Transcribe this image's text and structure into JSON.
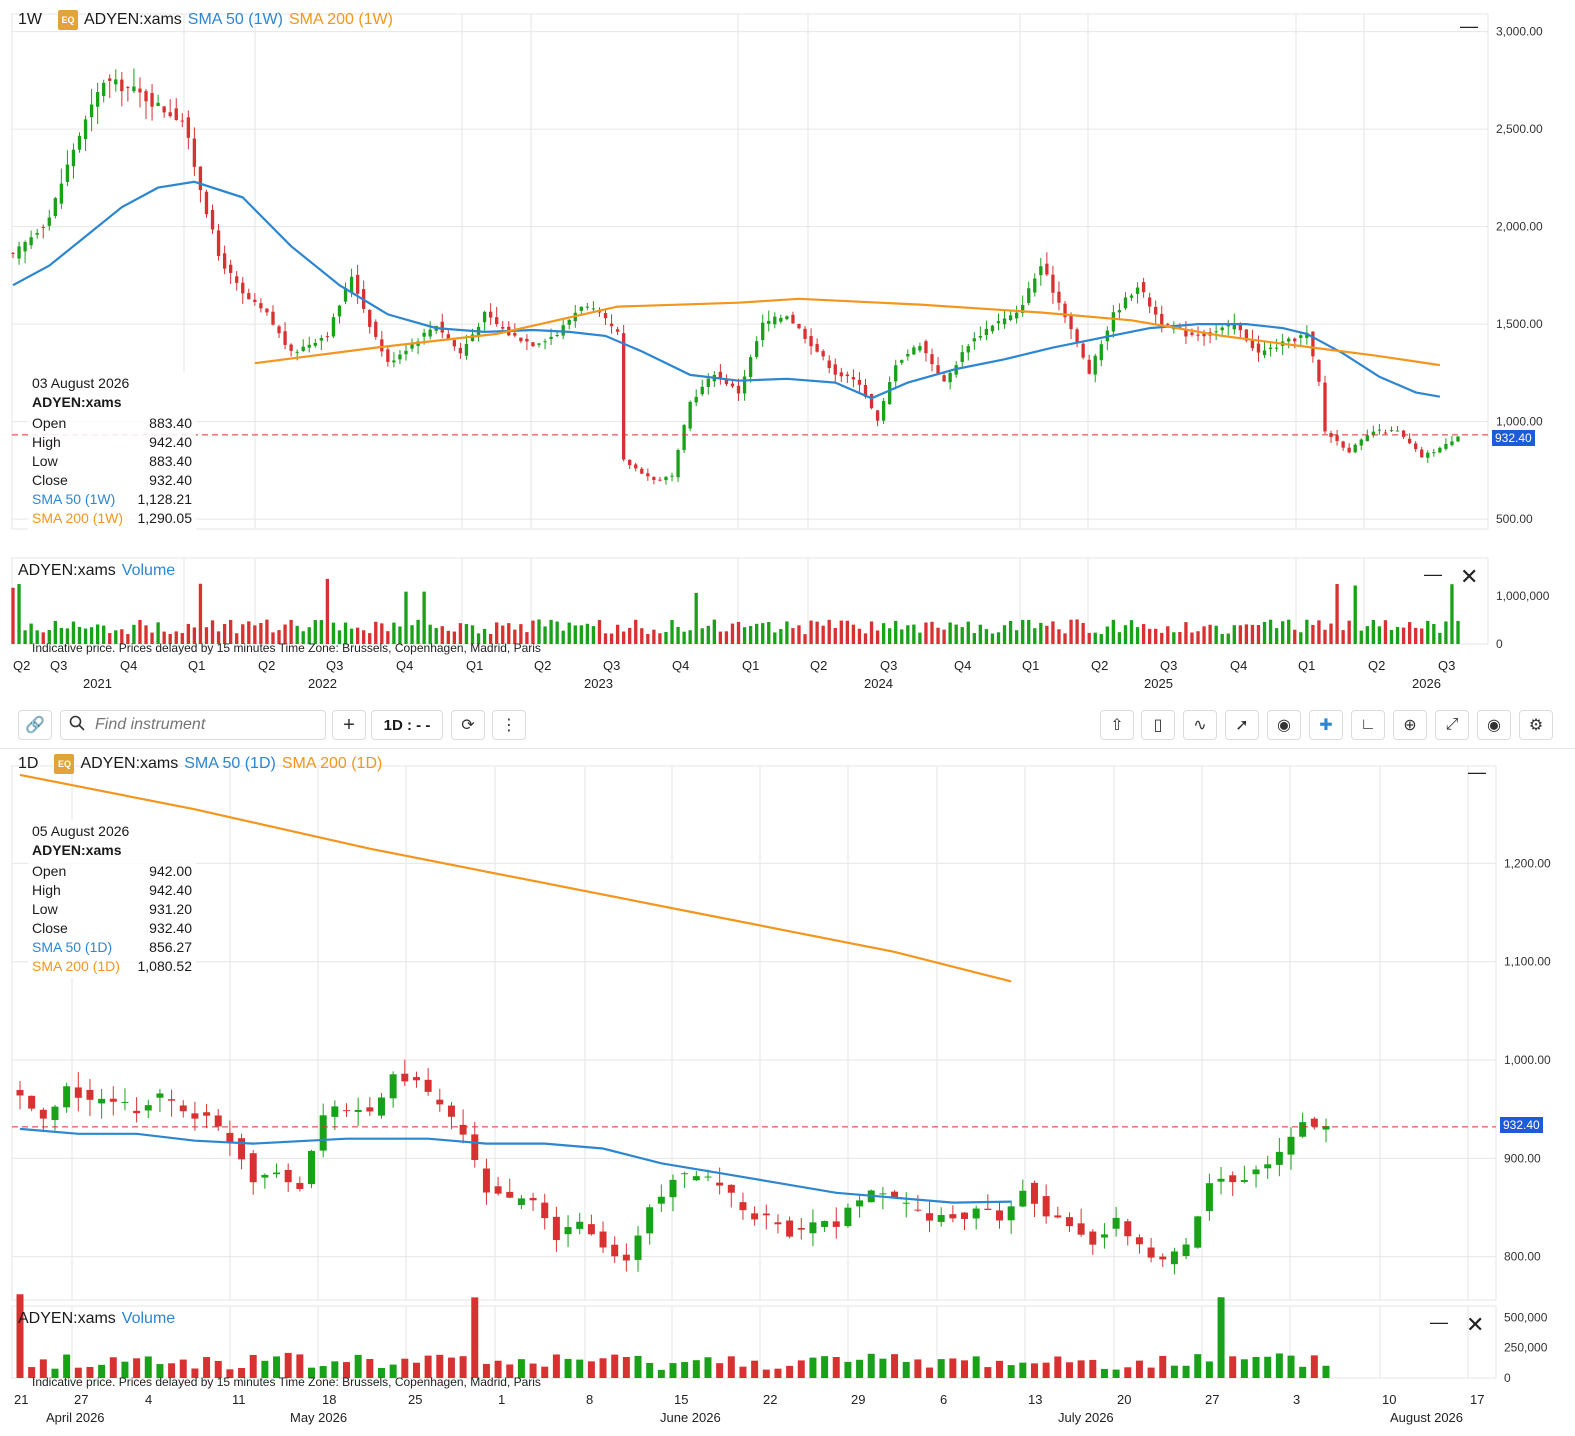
{
  "colors": {
    "up": "#1aa11a",
    "down": "#d83131",
    "sma50": "#2c86d0",
    "sma200": "#f2961d",
    "grid": "#e6e6e6",
    "last_price_line": "#d83131",
    "price_tag": "#1e5bd8"
  },
  "weekly": {
    "interval": "1W",
    "badge": "EQ",
    "symbol": "ADYEN:xams",
    "sma50_label": "SMA 50 (1W)",
    "sma200_label": "SMA 200 (1W)",
    "legend": {
      "date": "03 August 2026",
      "symbol": "ADYEN:xams",
      "open_label": "Open",
      "open": "883.40",
      "high_label": "High",
      "high": "942.40",
      "low_label": "Low",
      "low": "883.40",
      "close_label": "Close",
      "close": "932.40",
      "sma50_label": "SMA 50 (1W)",
      "sma50": "1,128.21",
      "sma200_label": "SMA 200 (1W)",
      "sma200": "1,290.05"
    },
    "last_price": "932.40",
    "volume_symbol": "ADYEN:xams",
    "volume_label": "Volume",
    "notice": "Indicative price. Prices delayed by 15 minutes   Time Zone: Brussels, Copenhagen, Madrid, Paris"
  },
  "daily": {
    "interval": "1D",
    "badge": "EQ",
    "symbol": "ADYEN:xams",
    "sma50_label": "SMA 50 (1D)",
    "sma200_label": "SMA 200 (1D)",
    "legend": {
      "date": "05 August 2026",
      "symbol": "ADYEN:xams",
      "open_label": "Open",
      "open": "942.00",
      "high_label": "High",
      "high": "942.40",
      "low_label": "Low",
      "low": "931.20",
      "close_label": "Close",
      "close": "932.40",
      "sma50_label": "SMA 50 (1D)",
      "sma50": "856.27",
      "sma200_label": "SMA 200 (1D)",
      "sma200": "1,080.52"
    },
    "last_price": "932.40",
    "volume_symbol": "ADYEN:xams",
    "volume_label": "Volume",
    "notice": "Indicative price. Prices delayed by 15 minutes   Time Zone: Brussels, Copenhagen, Madrid, Paris"
  },
  "toolbar": {
    "search_placeholder": "Find instrument",
    "interval": "1D : - -",
    "add": "+"
  },
  "icons": [
    "link-icon",
    "search-icon",
    "plus-icon",
    "refresh-icon",
    "more-vertical-icon",
    "share-icon",
    "chart-type-icon",
    "indicators-icon",
    "drawing-icon",
    "eye-icon",
    "crosshair-icon",
    "compare-icon",
    "zoom-icon",
    "fullscreen-icon",
    "camera-icon",
    "settings-icon"
  ],
  "chart_data": [
    {
      "type": "candlestick",
      "title": "ADYEN:xams 1W",
      "y_ticks": [
        "3,000.00",
        "2,500.00",
        "2,000.00",
        "1,500.00",
        "1,000.00",
        "500.00"
      ],
      "y_tick_values": [
        3000,
        2500,
        2000,
        1500,
        1000,
        500
      ],
      "ylim": [
        470,
        3070
      ],
      "x_quarter_labels": [
        "Q2",
        "Q3",
        "Q4",
        "Q1",
        "Q2",
        "Q3",
        "Q4",
        "Q1",
        "Q2",
        "Q3",
        "Q4",
        "Q1",
        "Q2",
        "Q3",
        "Q4",
        "Q1",
        "Q2",
        "Q3",
        "Q4",
        "Q1",
        "Q2",
        "Q3"
      ],
      "x_year_labels": [
        "2021",
        "2022",
        "2023",
        "2024",
        "2025",
        "2026"
      ],
      "series": [
        {
          "name": "ADYEN:xams",
          "anchors": [
            [
              0,
              1850
            ],
            [
              6,
              2050
            ],
            [
              10,
              2400
            ],
            [
              15,
              2750
            ],
            [
              20,
              2700
            ],
            [
              25,
              2600
            ],
            [
              28,
              2550
            ],
            [
              31,
              2200
            ],
            [
              34,
              1850
            ],
            [
              38,
              1650
            ],
            [
              42,
              1550
            ],
            [
              46,
              1350
            ],
            [
              52,
              1450
            ],
            [
              56,
              1750
            ],
            [
              59,
              1500
            ],
            [
              62,
              1300
            ],
            [
              66,
              1400
            ],
            [
              70,
              1500
            ],
            [
              74,
              1350
            ],
            [
              78,
              1550
            ],
            [
              82,
              1450
            ],
            [
              86,
              1400
            ],
            [
              90,
              1450
            ],
            [
              94,
              1600
            ],
            [
              97,
              1550
            ],
            [
              100,
              1450
            ],
            [
              101,
              800
            ],
            [
              106,
              700
            ],
            [
              109,
              720
            ],
            [
              112,
              1100
            ],
            [
              116,
              1250
            ],
            [
              120,
              1150
            ],
            [
              124,
              1500
            ],
            [
              128,
              1550
            ],
            [
              132,
              1400
            ],
            [
              136,
              1250
            ],
            [
              140,
              1200
            ],
            [
              143,
              1000
            ],
            [
              146,
              1300
            ],
            [
              150,
              1400
            ],
            [
              154,
              1200
            ],
            [
              158,
              1400
            ],
            [
              162,
              1500
            ],
            [
              166,
              1550
            ],
            [
              170,
              1800
            ],
            [
              174,
              1550
            ],
            [
              178,
              1250
            ],
            [
              182,
              1550
            ],
            [
              186,
              1700
            ],
            [
              190,
              1500
            ],
            [
              194,
              1450
            ],
            [
              198,
              1450
            ],
            [
              202,
              1500
            ],
            [
              206,
              1350
            ],
            [
              210,
              1400
            ],
            [
              214,
              1450
            ],
            [
              216,
              1200
            ],
            [
              217,
              950
            ],
            [
              221,
              850
            ],
            [
              225,
              950
            ],
            [
              229,
              950
            ],
            [
              233,
              820
            ],
            [
              237,
              880
            ],
            [
              239,
              932
            ]
          ]
        },
        {
          "name": "SMA 50 (1W)",
          "anchors": [
            [
              0,
              1700
            ],
            [
              6,
              1800
            ],
            [
              12,
              1950
            ],
            [
              18,
              2100
            ],
            [
              24,
              2200
            ],
            [
              30,
              2230
            ],
            [
              38,
              2150
            ],
            [
              46,
              1900
            ],
            [
              54,
              1700
            ],
            [
              62,
              1550
            ],
            [
              70,
              1480
            ],
            [
              78,
              1460
            ],
            [
              86,
              1470
            ],
            [
              92,
              1460
            ],
            [
              98,
              1440
            ],
            [
              104,
              1360
            ],
            [
              112,
              1240
            ],
            [
              120,
              1210
            ],
            [
              128,
              1220
            ],
            [
              136,
              1200
            ],
            [
              142,
              1120
            ],
            [
              148,
              1200
            ],
            [
              156,
              1270
            ],
            [
              164,
              1320
            ],
            [
              172,
              1380
            ],
            [
              180,
              1430
            ],
            [
              188,
              1480
            ],
            [
              196,
              1500
            ],
            [
              204,
              1500
            ],
            [
              210,
              1480
            ],
            [
              214,
              1450
            ],
            [
              220,
              1350
            ],
            [
              226,
              1230
            ],
            [
              232,
              1150
            ],
            [
              236,
              1128
            ]
          ]
        },
        {
          "name": "SMA 200 (1W)",
          "anchors": [
            [
              40,
              1300
            ],
            [
              60,
              1380
            ],
            [
              80,
              1450
            ],
            [
              100,
              1590
            ],
            [
              120,
              1610
            ],
            [
              130,
              1630
            ],
            [
              150,
              1600
            ],
            [
              170,
              1560
            ],
            [
              185,
              1520
            ],
            [
              200,
              1440
            ],
            [
              215,
              1380
            ],
            [
              225,
              1340
            ],
            [
              236,
              1290
            ]
          ]
        }
      ]
    },
    {
      "type": "bar",
      "title": "ADYEN:xams Volume (1W)",
      "y_ticks": [
        "1,000,000",
        "0"
      ],
      "y_tick_values": [
        1000000,
        0
      ],
      "ylim": [
        0,
        1700000
      ]
    },
    {
      "type": "candlestick",
      "title": "ADYEN:xams 1D",
      "y_ticks": [
        "1,200.00",
        "1,100.00",
        "1,000.00",
        "900.00",
        "800.00"
      ],
      "y_tick_values": [
        1200,
        1100,
        1000,
        900,
        800
      ],
      "ylim": [
        760,
        1295
      ],
      "x_day_labels": [
        "21",
        "27",
        "4",
        "11",
        "18",
        "25",
        "1",
        "8",
        "15",
        "22",
        "29",
        "6",
        "13",
        "20",
        "27",
        "3",
        "10",
        "17"
      ],
      "x_month_labels": [
        "April 2026",
        "May 2026",
        "June 2026",
        "July 2026",
        "August 2026"
      ],
      "series": [
        {
          "name": "ADYEN:xams",
          "anchors": [
            [
              0,
              965
            ],
            [
              2,
              935
            ],
            [
              4,
              970
            ],
            [
              6,
              960
            ],
            [
              8,
              955
            ],
            [
              10,
              950
            ],
            [
              12,
              965
            ],
            [
              14,
              950
            ],
            [
              16,
              940
            ],
            [
              18,
              920
            ],
            [
              20,
              880
            ],
            [
              22,
              890
            ],
            [
              24,
              870
            ],
            [
              26,
              945
            ],
            [
              28,
              950
            ],
            [
              30,
              945
            ],
            [
              32,
              985
            ],
            [
              34,
              975
            ],
            [
              36,
              955
            ],
            [
              38,
              920
            ],
            [
              40,
              870
            ],
            [
              42,
              855
            ],
            [
              44,
              855
            ],
            [
              46,
              820
            ],
            [
              48,
              835
            ],
            [
              50,
              810
            ],
            [
              52,
              795
            ],
            [
              54,
              850
            ],
            [
              56,
              880
            ],
            [
              58,
              880
            ],
            [
              60,
              875
            ],
            [
              62,
              845
            ],
            [
              64,
              840
            ],
            [
              66,
              825
            ],
            [
              68,
              830
            ],
            [
              70,
              835
            ],
            [
              72,
              860
            ],
            [
              74,
              865
            ],
            [
              76,
              850
            ],
            [
              78,
              840
            ],
            [
              80,
              840
            ],
            [
              82,
              845
            ],
            [
              84,
              840
            ],
            [
              86,
              870
            ],
            [
              88,
              845
            ],
            [
              90,
              830
            ],
            [
              92,
              815
            ],
            [
              94,
              835
            ],
            [
              96,
              810
            ],
            [
              98,
              795
            ],
            [
              100,
              810
            ],
            [
              102,
              880
            ],
            [
              104,
              880
            ],
            [
              106,
              885
            ],
            [
              108,
              905
            ],
            [
              110,
              935
            ],
            [
              112,
              932
            ]
          ]
        },
        {
          "name": "SMA 50 (1D)",
          "anchors": [
            [
              0,
              930
            ],
            [
              5,
              925
            ],
            [
              10,
              925
            ],
            [
              15,
              918
            ],
            [
              20,
              915
            ],
            [
              28,
              920
            ],
            [
              35,
              920
            ],
            [
              40,
              915
            ],
            [
              45,
              915
            ],
            [
              50,
              910
            ],
            [
              55,
              895
            ],
            [
              60,
              885
            ],
            [
              65,
              875
            ],
            [
              70,
              865
            ],
            [
              80,
              855
            ],
            [
              85,
              856
            ]
          ]
        },
        {
          "name": "SMA 200 (1D)",
          "anchors": [
            [
              0,
              1290
            ],
            [
              15,
              1255
            ],
            [
              30,
              1215
            ],
            [
              45,
              1180
            ],
            [
              60,
              1145
            ],
            [
              75,
              1110
            ],
            [
              85,
              1080
            ]
          ]
        }
      ]
    },
    {
      "type": "bar",
      "title": "ADYEN:xams Volume (1D)",
      "y_ticks": [
        "500,000",
        "250,000",
        "0"
      ],
      "y_tick_values": [
        500000,
        250000,
        0
      ],
      "ylim": [
        0,
        560000
      ]
    }
  ]
}
